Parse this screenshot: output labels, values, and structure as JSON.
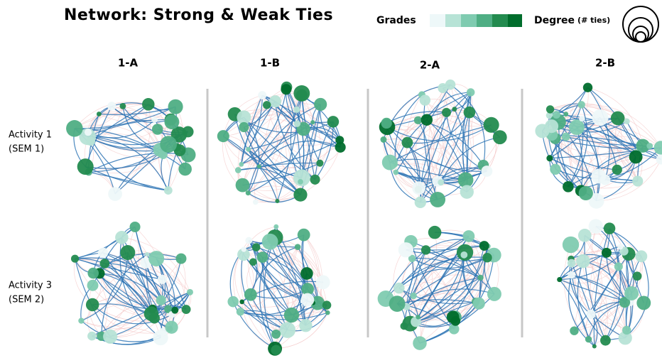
{
  "header": {
    "title": "Network: Strong & Weak Ties"
  },
  "legend": {
    "grades": "Grades",
    "degree": "Degree",
    "degree_unit": "(# ties)"
  },
  "columns": [
    "1-A",
    "1-B",
    "2-A",
    "2-B"
  ],
  "rows": [
    {
      "line1": "Activity 1",
      "line2": "(SEM 1)"
    },
    {
      "line1": "Activity 3",
      "line2": "(SEM 2)"
    }
  ]
}
